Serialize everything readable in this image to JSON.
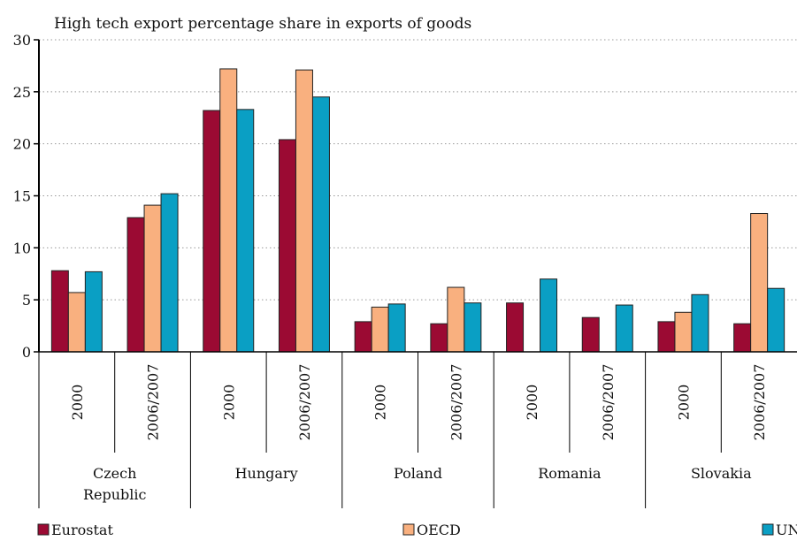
{
  "chart_data": {
    "type": "bar",
    "title": "High tech export percentage share in exports of goods",
    "xlabel": "",
    "ylabel": "",
    "ylim": [
      0,
      30
    ],
    "yticks": [
      0,
      5,
      10,
      15,
      20,
      25,
      30
    ],
    "grid": true,
    "legend_position": "bottom",
    "groups": [
      {
        "label": [
          "Czech",
          "Republic"
        ],
        "categories": [
          "2000",
          "2006/2007"
        ]
      },
      {
        "label": [
          "Hungary"
        ],
        "categories": [
          "2000",
          "2006/2007"
        ]
      },
      {
        "label": [
          "Poland"
        ],
        "categories": [
          "2000",
          "2006/2007"
        ]
      },
      {
        "label": [
          "Romania"
        ],
        "categories": [
          "2000",
          "2006/2007"
        ]
      },
      {
        "label": [
          "Slovakia"
        ],
        "categories": [
          "2000",
          "2006/2007"
        ]
      }
    ],
    "categories": [
      "Czech Republic 2000",
      "Czech Republic 2006/2007",
      "Hungary 2000",
      "Hungary 2006/2007",
      "Poland 2000",
      "Poland 2006/2007",
      "Romania 2000",
      "Romania 2006/2007",
      "Slovakia 2000",
      "Slovakia 2006/2007"
    ],
    "series": [
      {
        "name": "Eurostat",
        "color": "#9b0a33",
        "values": [
          7.8,
          12.9,
          23.2,
          20.4,
          2.9,
          2.7,
          4.7,
          3.3,
          2.9,
          2.7
        ]
      },
      {
        "name": "OECD",
        "color": "#f9b07f",
        "values": [
          5.7,
          14.1,
          27.2,
          27.1,
          4.3,
          6.2,
          null,
          null,
          3.8,
          13.3
        ]
      },
      {
        "name": "UN",
        "color": "#0a9fc4",
        "values": [
          7.7,
          15.2,
          23.3,
          24.5,
          4.6,
          4.7,
          7.0,
          4.5,
          5.5,
          6.1
        ]
      }
    ]
  }
}
